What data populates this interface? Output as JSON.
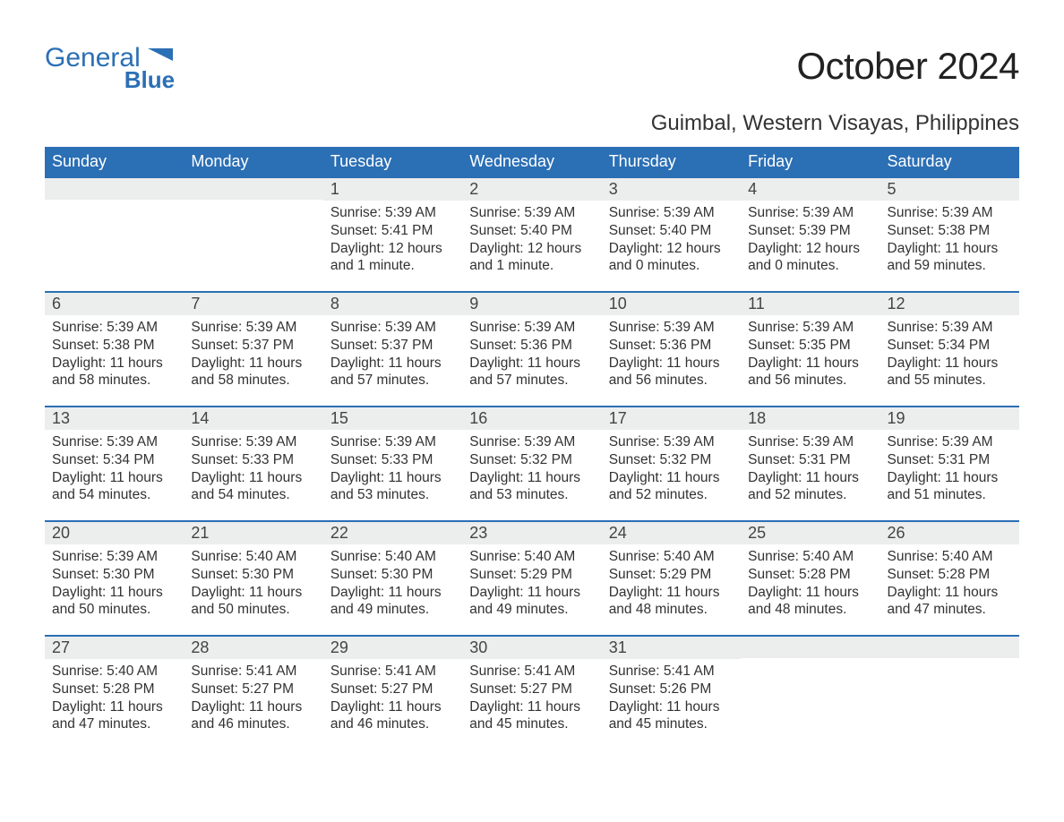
{
  "brand": {
    "word1": "General",
    "word2": "Blue"
  },
  "title": "October 2024",
  "location": "Guimbal, Western Visayas, Philippines",
  "colors": {
    "header_bg": "#2b6fb5",
    "header_text": "#ffffff",
    "daynum_bg": "#eceded",
    "body_text": "#323232",
    "row_border": "#2b6fb5",
    "page_bg": "#ffffff"
  },
  "typography": {
    "title_fontsize": 42,
    "location_fontsize": 24,
    "dayheader_fontsize": 18,
    "daynum_fontsize": 18,
    "body_fontsize": 15.5
  },
  "day_headers": [
    "Sunday",
    "Monday",
    "Tuesday",
    "Wednesday",
    "Thursday",
    "Friday",
    "Saturday"
  ],
  "weeks": [
    [
      {
        "num": "",
        "sunrise": "",
        "sunset": "",
        "daylight": ""
      },
      {
        "num": "",
        "sunrise": "",
        "sunset": "",
        "daylight": ""
      },
      {
        "num": "1",
        "sunrise": "Sunrise: 5:39 AM",
        "sunset": "Sunset: 5:41 PM",
        "daylight": "Daylight: 12 hours and 1 minute."
      },
      {
        "num": "2",
        "sunrise": "Sunrise: 5:39 AM",
        "sunset": "Sunset: 5:40 PM",
        "daylight": "Daylight: 12 hours and 1 minute."
      },
      {
        "num": "3",
        "sunrise": "Sunrise: 5:39 AM",
        "sunset": "Sunset: 5:40 PM",
        "daylight": "Daylight: 12 hours and 0 minutes."
      },
      {
        "num": "4",
        "sunrise": "Sunrise: 5:39 AM",
        "sunset": "Sunset: 5:39 PM",
        "daylight": "Daylight: 12 hours and 0 minutes."
      },
      {
        "num": "5",
        "sunrise": "Sunrise: 5:39 AM",
        "sunset": "Sunset: 5:38 PM",
        "daylight": "Daylight: 11 hours and 59 minutes."
      }
    ],
    [
      {
        "num": "6",
        "sunrise": "Sunrise: 5:39 AM",
        "sunset": "Sunset: 5:38 PM",
        "daylight": "Daylight: 11 hours and 58 minutes."
      },
      {
        "num": "7",
        "sunrise": "Sunrise: 5:39 AM",
        "sunset": "Sunset: 5:37 PM",
        "daylight": "Daylight: 11 hours and 58 minutes."
      },
      {
        "num": "8",
        "sunrise": "Sunrise: 5:39 AM",
        "sunset": "Sunset: 5:37 PM",
        "daylight": "Daylight: 11 hours and 57 minutes."
      },
      {
        "num": "9",
        "sunrise": "Sunrise: 5:39 AM",
        "sunset": "Sunset: 5:36 PM",
        "daylight": "Daylight: 11 hours and 57 minutes."
      },
      {
        "num": "10",
        "sunrise": "Sunrise: 5:39 AM",
        "sunset": "Sunset: 5:36 PM",
        "daylight": "Daylight: 11 hours and 56 minutes."
      },
      {
        "num": "11",
        "sunrise": "Sunrise: 5:39 AM",
        "sunset": "Sunset: 5:35 PM",
        "daylight": "Daylight: 11 hours and 56 minutes."
      },
      {
        "num": "12",
        "sunrise": "Sunrise: 5:39 AM",
        "sunset": "Sunset: 5:34 PM",
        "daylight": "Daylight: 11 hours and 55 minutes."
      }
    ],
    [
      {
        "num": "13",
        "sunrise": "Sunrise: 5:39 AM",
        "sunset": "Sunset: 5:34 PM",
        "daylight": "Daylight: 11 hours and 54 minutes."
      },
      {
        "num": "14",
        "sunrise": "Sunrise: 5:39 AM",
        "sunset": "Sunset: 5:33 PM",
        "daylight": "Daylight: 11 hours and 54 minutes."
      },
      {
        "num": "15",
        "sunrise": "Sunrise: 5:39 AM",
        "sunset": "Sunset: 5:33 PM",
        "daylight": "Daylight: 11 hours and 53 minutes."
      },
      {
        "num": "16",
        "sunrise": "Sunrise: 5:39 AM",
        "sunset": "Sunset: 5:32 PM",
        "daylight": "Daylight: 11 hours and 53 minutes."
      },
      {
        "num": "17",
        "sunrise": "Sunrise: 5:39 AM",
        "sunset": "Sunset: 5:32 PM",
        "daylight": "Daylight: 11 hours and 52 minutes."
      },
      {
        "num": "18",
        "sunrise": "Sunrise: 5:39 AM",
        "sunset": "Sunset: 5:31 PM",
        "daylight": "Daylight: 11 hours and 52 minutes."
      },
      {
        "num": "19",
        "sunrise": "Sunrise: 5:39 AM",
        "sunset": "Sunset: 5:31 PM",
        "daylight": "Daylight: 11 hours and 51 minutes."
      }
    ],
    [
      {
        "num": "20",
        "sunrise": "Sunrise: 5:39 AM",
        "sunset": "Sunset: 5:30 PM",
        "daylight": "Daylight: 11 hours and 50 minutes."
      },
      {
        "num": "21",
        "sunrise": "Sunrise: 5:40 AM",
        "sunset": "Sunset: 5:30 PM",
        "daylight": "Daylight: 11 hours and 50 minutes."
      },
      {
        "num": "22",
        "sunrise": "Sunrise: 5:40 AM",
        "sunset": "Sunset: 5:30 PM",
        "daylight": "Daylight: 11 hours and 49 minutes."
      },
      {
        "num": "23",
        "sunrise": "Sunrise: 5:40 AM",
        "sunset": "Sunset: 5:29 PM",
        "daylight": "Daylight: 11 hours and 49 minutes."
      },
      {
        "num": "24",
        "sunrise": "Sunrise: 5:40 AM",
        "sunset": "Sunset: 5:29 PM",
        "daylight": "Daylight: 11 hours and 48 minutes."
      },
      {
        "num": "25",
        "sunrise": "Sunrise: 5:40 AM",
        "sunset": "Sunset: 5:28 PM",
        "daylight": "Daylight: 11 hours and 48 minutes."
      },
      {
        "num": "26",
        "sunrise": "Sunrise: 5:40 AM",
        "sunset": "Sunset: 5:28 PM",
        "daylight": "Daylight: 11 hours and 47 minutes."
      }
    ],
    [
      {
        "num": "27",
        "sunrise": "Sunrise: 5:40 AM",
        "sunset": "Sunset: 5:28 PM",
        "daylight": "Daylight: 11 hours and 47 minutes."
      },
      {
        "num": "28",
        "sunrise": "Sunrise: 5:41 AM",
        "sunset": "Sunset: 5:27 PM",
        "daylight": "Daylight: 11 hours and 46 minutes."
      },
      {
        "num": "29",
        "sunrise": "Sunrise: 5:41 AM",
        "sunset": "Sunset: 5:27 PM",
        "daylight": "Daylight: 11 hours and 46 minutes."
      },
      {
        "num": "30",
        "sunrise": "Sunrise: 5:41 AM",
        "sunset": "Sunset: 5:27 PM",
        "daylight": "Daylight: 11 hours and 45 minutes."
      },
      {
        "num": "31",
        "sunrise": "Sunrise: 5:41 AM",
        "sunset": "Sunset: 5:26 PM",
        "daylight": "Daylight: 11 hours and 45 minutes."
      },
      {
        "num": "",
        "sunrise": "",
        "sunset": "",
        "daylight": ""
      },
      {
        "num": "",
        "sunrise": "",
        "sunset": "",
        "daylight": ""
      }
    ]
  ]
}
